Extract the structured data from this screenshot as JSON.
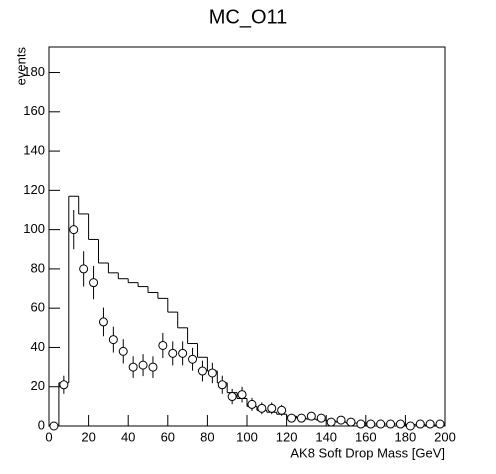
{
  "chart_data": {
    "type": "histogram",
    "title": "MC_O11",
    "x_label": "AK8 Soft Drop Mass [GeV]",
    "y_label": "events",
    "bins": [
      0,
      5,
      10,
      15,
      20,
      25,
      30,
      35,
      40,
      45,
      50,
      55,
      60,
      65,
      70,
      75,
      80,
      85,
      90,
      95,
      100,
      105,
      110,
      115,
      120,
      125,
      130,
      135,
      140,
      145,
      150,
      155,
      160,
      165,
      170,
      175,
      180,
      185,
      190,
      195,
      200
    ],
    "series": [
      {
        "style": "step",
        "color": "#000000",
        "values": [
          0,
          22,
          117,
          108,
          95,
          83,
          78,
          75,
          73,
          71,
          68,
          65,
          58,
          50,
          42,
          35,
          28,
          22,
          17,
          14,
          10,
          8,
          7,
          6,
          5,
          4,
          3.5,
          3,
          2.5,
          2,
          1.5,
          1.5,
          1,
          1,
          1,
          1,
          0.8,
          0.7,
          0.5,
          0.5
        ]
      },
      {
        "style": "points",
        "color": "#000000",
        "values": [
          0,
          21,
          100,
          80,
          73,
          53,
          44,
          38,
          30,
          31,
          30,
          41,
          37,
          37,
          34,
          28,
          27,
          21,
          15,
          16,
          11,
          9,
          9,
          8,
          4,
          4,
          5,
          4,
          2,
          3,
          2,
          1,
          1,
          1,
          1,
          1,
          0,
          1,
          1,
          1
        ],
        "errors": [
          0,
          4.6,
          10,
          9,
          8.5,
          7.3,
          6.6,
          6.2,
          5.5,
          5.6,
          5.5,
          6.4,
          6.1,
          6.1,
          5.8,
          5.3,
          5.2,
          4.6,
          3.9,
          4,
          3.3,
          3,
          3,
          2.8,
          2,
          2,
          2.2,
          2,
          1.4,
          1.7,
          1.4,
          1,
          1,
          1,
          1,
          1,
          0,
          1,
          1,
          1
        ]
      }
    ],
    "xlim": [
      0,
      200
    ],
    "xticks": [
      0,
      20,
      40,
      60,
      80,
      100,
      120,
      140,
      160,
      180,
      200
    ],
    "ylim": [
      0,
      193
    ],
    "yticks": [
      0,
      20,
      40,
      60,
      80,
      100,
      120,
      140,
      160,
      180
    ]
  }
}
